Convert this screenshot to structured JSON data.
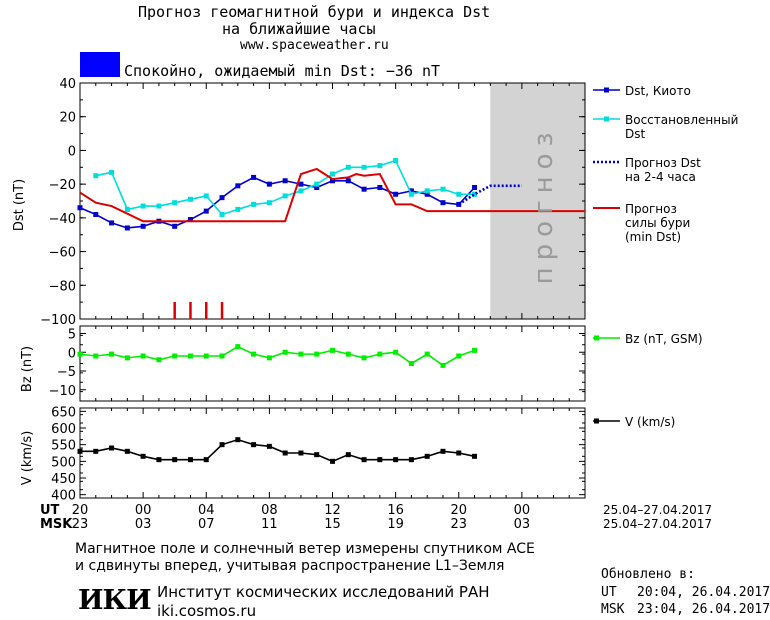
{
  "header": {
    "title_line1": "Прогноз геомагнитной бури и индекса Dst",
    "title_line2": "на ближайшие часы",
    "site": "www.spaceweather.ru",
    "status": "Спокойно, ожидаемый min Dst: −36 nT",
    "status_color": "#0000ff"
  },
  "chart_data": [
    {
      "type": "line",
      "ylabel": "Dst (nT)",
      "ylim": [
        -100,
        40
      ],
      "yticks": [
        40,
        20,
        0,
        -20,
        -40,
        -60,
        -80,
        -100
      ],
      "forecast_label": "прогноз",
      "series": [
        {
          "name": "Dst, Киото",
          "color": "#0000cc",
          "marker": "square",
          "x": [
            20,
            21,
            22,
            23,
            24,
            25,
            26,
            27,
            28,
            29,
            30,
            31,
            32,
            33,
            34,
            35,
            36,
            37,
            38,
            39,
            40,
            41,
            42,
            43,
            44,
            45
          ],
          "y": [
            -34,
            -38,
            -43,
            -46,
            -45,
            -42,
            -45,
            -41,
            -36,
            -28,
            -21,
            -16,
            -20,
            -18,
            -20,
            -22,
            -18,
            -18,
            -23,
            -22,
            -26,
            -24,
            -26,
            -31,
            -32,
            -22
          ]
        },
        {
          "name": "Восстановленный Dst",
          "color": "#00dddd",
          "marker": "square",
          "x": [
            21,
            22,
            23,
            24,
            25,
            26,
            27,
            28,
            29,
            30,
            31,
            32,
            33,
            34,
            35,
            36,
            37,
            38,
            39,
            40,
            41,
            42,
            43,
            44,
            45
          ],
          "y": [
            -15,
            -13,
            -35,
            -33,
            -33,
            -31,
            -29,
            -27,
            -38,
            -35,
            -32,
            -31,
            -27,
            -24,
            -20,
            -14,
            -10,
            -10,
            -9,
            -6,
            -26,
            -24,
            -23,
            -26,
            -26
          ]
        },
        {
          "name": "Прогноз Dst на 2-4 часа",
          "color": "#0000cc",
          "style": "dotted",
          "x": [
            44,
            45,
            46,
            47,
            48
          ],
          "y": [
            -32,
            -26,
            -21,
            -21,
            -21
          ]
        },
        {
          "name": "Прогноз силы бури (min Dst)",
          "color": "#dd0000",
          "style": "solid",
          "x": [
            20,
            21,
            22,
            24,
            25,
            26,
            27,
            33,
            34,
            35,
            36,
            37,
            37.5,
            38,
            39,
            40,
            41,
            42,
            45,
            52
          ],
          "y": [
            -25,
            -31,
            -33,
            -42,
            -42,
            -42,
            -42,
            -42,
            -14,
            -11,
            -17,
            -16,
            -14,
            -15,
            -14,
            -32,
            -32,
            -36,
            -36,
            -36
          ]
        }
      ],
      "red_ticks_x": [
        26,
        27,
        28,
        29
      ]
    },
    {
      "type": "line",
      "ylabel": "Bz (nT)",
      "ylim": [
        -13,
        7
      ],
      "yticks": [
        5,
        0,
        -5,
        -10
      ],
      "series": [
        {
          "name": "Bz (nT, GSM)",
          "color": "#00ee00",
          "marker": "square",
          "x": [
            20,
            21,
            22,
            23,
            24,
            25,
            26,
            27,
            28,
            29,
            30,
            31,
            32,
            33,
            34,
            35,
            36,
            37,
            38,
            39,
            40,
            41,
            42,
            43,
            44,
            45
          ],
          "y": [
            -0.5,
            -1,
            -0.5,
            -1.5,
            -1,
            -2,
            -1,
            -1,
            -1,
            -1,
            1.5,
            -0.5,
            -1.5,
            0,
            -0.5,
            -0.5,
            0.5,
            -0.5,
            -1.5,
            -0.5,
            0,
            -3,
            -0.5,
            -3.5,
            -1,
            0.5
          ]
        }
      ]
    },
    {
      "type": "line",
      "ylabel": "V (km/s)",
      "ylim": [
        390,
        660
      ],
      "yticks": [
        650,
        600,
        550,
        500,
        450,
        400
      ],
      "series": [
        {
          "name": "V (km/s)",
          "color": "#000000",
          "marker": "square",
          "x": [
            20,
            21,
            22,
            23,
            24,
            25,
            26,
            27,
            28,
            29,
            30,
            31,
            32,
            33,
            34,
            35,
            36,
            37,
            38,
            39,
            40,
            41,
            42,
            43,
            44,
            45
          ],
          "y": [
            530,
            530,
            540,
            530,
            515,
            505,
            505,
            505,
            505,
            550,
            565,
            550,
            545,
            525,
            525,
            520,
            500,
            520,
            505,
            505,
            505,
            505,
            515,
            530,
            525,
            515
          ]
        }
      ]
    }
  ],
  "x_axis": {
    "ut_label": "UT",
    "msk_label": "MSK",
    "ut_ticks": [
      "20",
      "00",
      "04",
      "08",
      "12",
      "16",
      "20",
      "00"
    ],
    "msk_ticks": [
      "23",
      "03",
      "07",
      "11",
      "15",
      "19",
      "23",
      "03"
    ],
    "range_ut": "25.04–27.04.2017",
    "range_msk": "25.04–27.04.2017"
  },
  "footer": {
    "note_line1": "Магнитное поле и солнечный ветер измерены спутником ACE",
    "note_line2": "и сдвинуты вперед, учитывая распространение L1–Земля",
    "logo": "ИКИ",
    "institute": "Институт космических исследований РАН",
    "institute_site": "iki.cosmos.ru",
    "updated_label": "Обновлено в:",
    "updated_ut_label": "UT",
    "updated_ut": "20:04, 26.04.2017",
    "updated_msk_label": "MSK",
    "updated_msk": "23:04, 26.04.2017"
  }
}
